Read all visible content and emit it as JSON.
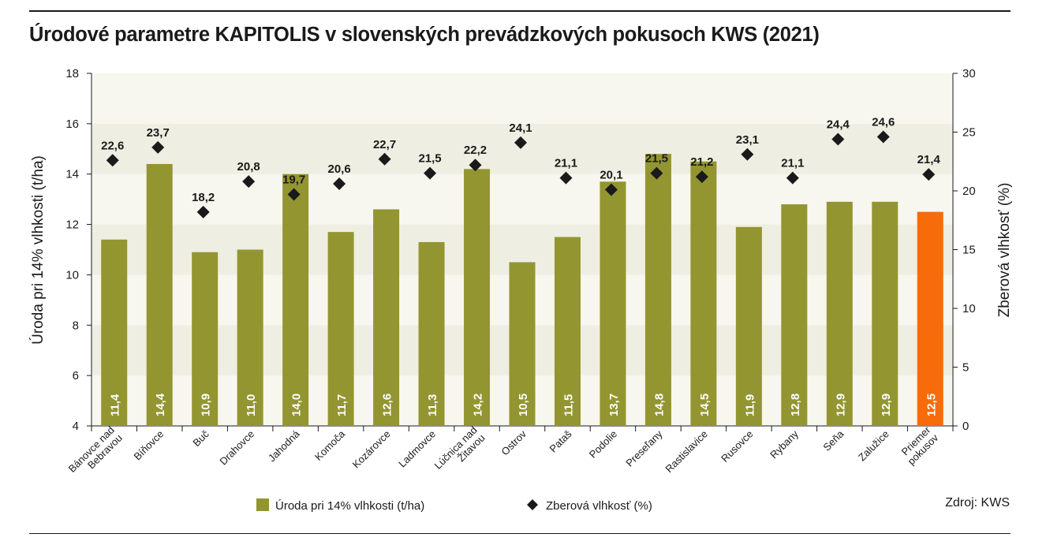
{
  "title": "Úrodové parametre KAPITOLIS v slovenských prevádzkových pokusoch KWS (2021)",
  "source": "Zdroj: KWS",
  "colors": {
    "bar": "#939531",
    "bar_highlight": "#f76b0a",
    "marker": "#1a1a1a",
    "band": "#efeee2"
  },
  "chart_data": {
    "type": "bar",
    "title": "Úrodové parametre KAPITOLIS v slovenských prevádzkových pokusoch KWS (2021)",
    "categories": [
      "Bánovce nad Bebravou",
      "Bíňovce",
      "Buč",
      "Drahovce",
      "Jahodná",
      "Komoča",
      "Kozárovce",
      "Ladmovce",
      "Lúčnica nad Žitavou",
      "Ostrov",
      "Pataš",
      "Podolie",
      "Preseľany",
      "Rastislavice",
      "Rusovce",
      "Rybany",
      "Seňa",
      "Zalužice",
      "Priemer pokusov"
    ],
    "series": [
      {
        "name": "Úroda pri 14% vlhkosti (t/ha)",
        "type": "bar",
        "axis": "left",
        "values": [
          11.4,
          14.4,
          10.9,
          11.0,
          14.0,
          11.7,
          12.6,
          11.3,
          14.2,
          10.5,
          11.5,
          13.7,
          14.8,
          14.5,
          11.9,
          12.8,
          12.9,
          12.9,
          12.5
        ],
        "labels": [
          "11,4",
          "14,4",
          "10,9",
          "11,0",
          "14,0",
          "11,7",
          "12,6",
          "11,3",
          "14,2",
          "10,5",
          "11,5",
          "13,7",
          "14,8",
          "14,5",
          "11,9",
          "12,8",
          "12,9",
          "12,9",
          "12,5"
        ],
        "highlight_index": 18
      },
      {
        "name": "Zberová vlhkosť (%)",
        "type": "scatter",
        "marker": "diamond",
        "axis": "right",
        "values": [
          22.6,
          23.7,
          18.2,
          20.8,
          19.7,
          20.6,
          22.7,
          21.5,
          22.2,
          24.1,
          21.1,
          20.1,
          21.5,
          21.2,
          23.1,
          21.1,
          24.4,
          24.6,
          21.4
        ],
        "labels": [
          "22,6",
          "23,7",
          "18,2",
          "20,8",
          "19,7",
          "20,6",
          "22,7",
          "21,5",
          "22,2",
          "24,1",
          "21,1",
          "20,1",
          "21,5",
          "21,2",
          "23,1",
          "21,1",
          "24,4",
          "24,6",
          "21,4"
        ]
      }
    ],
    "ylabel": "Úroda pri 14% vlhkosti (t/ha)",
    "ylim": [
      4,
      18
    ],
    "yticks": [
      "4",
      "6",
      "8",
      "10",
      "12",
      "14",
      "16",
      "18"
    ],
    "y2label": "Zberová vlhkosť (%)",
    "y2lim": [
      0,
      30
    ],
    "y2ticks": [
      "0",
      "5",
      "10",
      "15",
      "20",
      "25",
      "30"
    ],
    "grid": false,
    "banded_background": true,
    "legend_position": "bottom"
  }
}
